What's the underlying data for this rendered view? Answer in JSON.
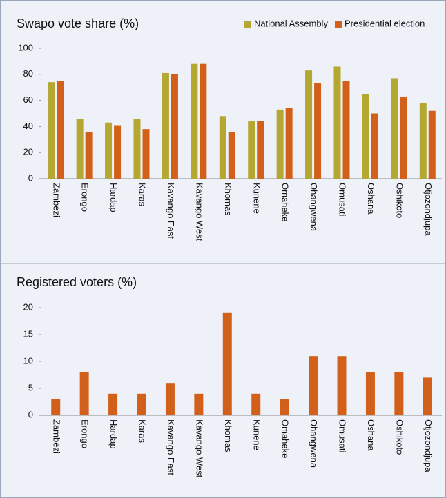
{
  "chart_data": [
    {
      "type": "bar",
      "title": "Swapo vote share (%)",
      "categories": [
        "Zambezi",
        "Erongo",
        "Hardap",
        "Karas",
        "Kavango East",
        "Kavango West",
        "Khomas",
        "Kunene",
        "Omaheke",
        "Ohangwena",
        "Omusati",
        "Oshana",
        "Oshikoto",
        "Otjozondjupa"
      ],
      "series": [
        {
          "name": "National Assembly",
          "color": "#b5a832",
          "values": [
            74,
            46,
            43,
            46,
            81,
            88,
            48,
            44,
            53,
            83,
            86,
            65,
            77,
            58
          ]
        },
        {
          "name": "Presidential election",
          "color": "#d2601b",
          "values": [
            75,
            36,
            41,
            38,
            80,
            88,
            36,
            44,
            54,
            73,
            75,
            50,
            63,
            52
          ]
        }
      ],
      "ylim": [
        0,
        100
      ],
      "yticks": [
        0,
        20,
        40,
        60,
        80,
        100
      ],
      "legend": "top-right"
    },
    {
      "type": "bar",
      "title": "Registered voters (%)",
      "categories": [
        "Zambezi",
        "Erongo",
        "Hardap",
        "Karas",
        "Kavango East",
        "Kavango West",
        "Khomas",
        "Kunene",
        "Omaheke",
        "Ohangwena",
        "Omusati",
        "Oshana",
        "Oshikoto",
        "Otjozondjupa"
      ],
      "values": [
        3,
        8,
        4,
        4,
        6,
        4,
        19,
        4,
        3,
        11,
        11,
        8,
        8,
        7
      ],
      "color": "#d2601b",
      "ylim": [
        0,
        20
      ],
      "yticks": [
        0,
        5,
        10,
        15,
        20
      ]
    }
  ]
}
